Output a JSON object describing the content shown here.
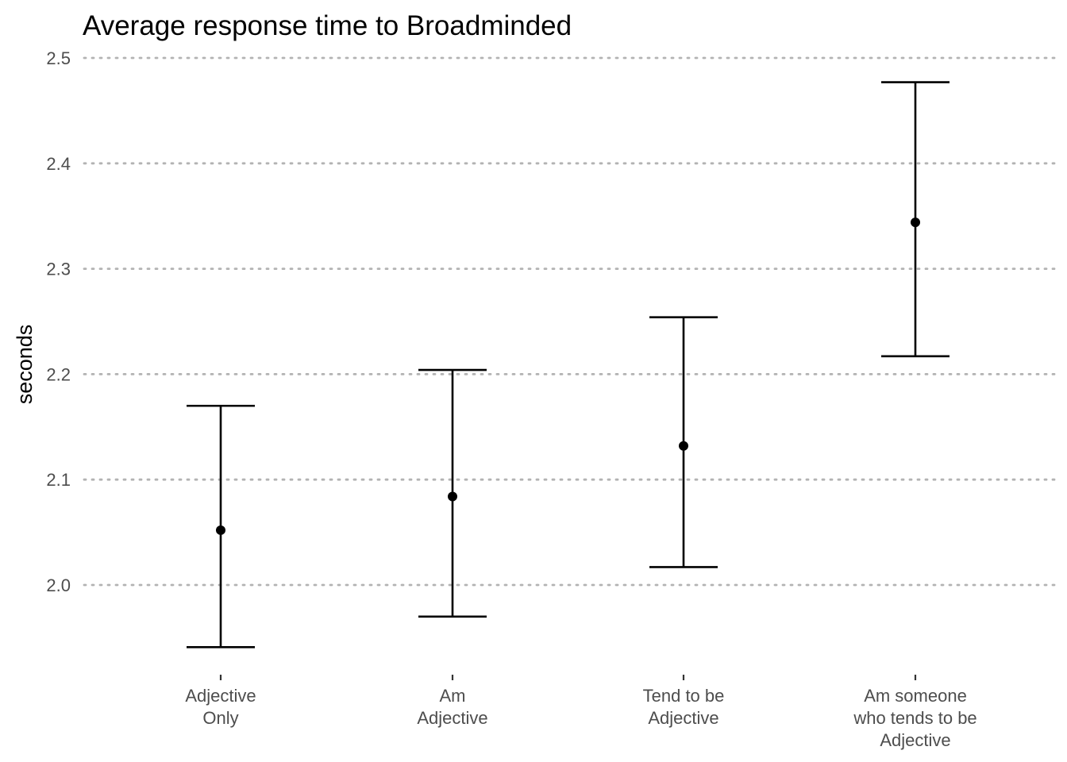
{
  "chart_data": {
    "type": "errorbar",
    "title": "Average response time to Broadminded",
    "xlabel": "",
    "ylabel": "seconds",
    "ylim": [
      1.92,
      2.52
    ],
    "yticks": [
      "2.0",
      "2.1",
      "2.2",
      "2.3",
      "2.4",
      "2.5"
    ],
    "grid": "horizontal dotted",
    "categories": [
      [
        "Adjective",
        "Only"
      ],
      [
        "Am",
        "Adjective"
      ],
      [
        "Tend to be",
        "Adjective"
      ],
      [
        "Am someone",
        "who tends to be",
        "Adjective"
      ]
    ],
    "values": [
      2.052,
      2.084,
      2.132,
      2.344
    ],
    "lower": [
      1.941,
      1.97,
      2.017,
      2.217
    ],
    "upper": [
      2.17,
      2.204,
      2.254,
      2.477
    ],
    "colors": {
      "marks": "#000000",
      "grid": "#b3b3b3",
      "tick_text": "#4d4d4d"
    }
  }
}
